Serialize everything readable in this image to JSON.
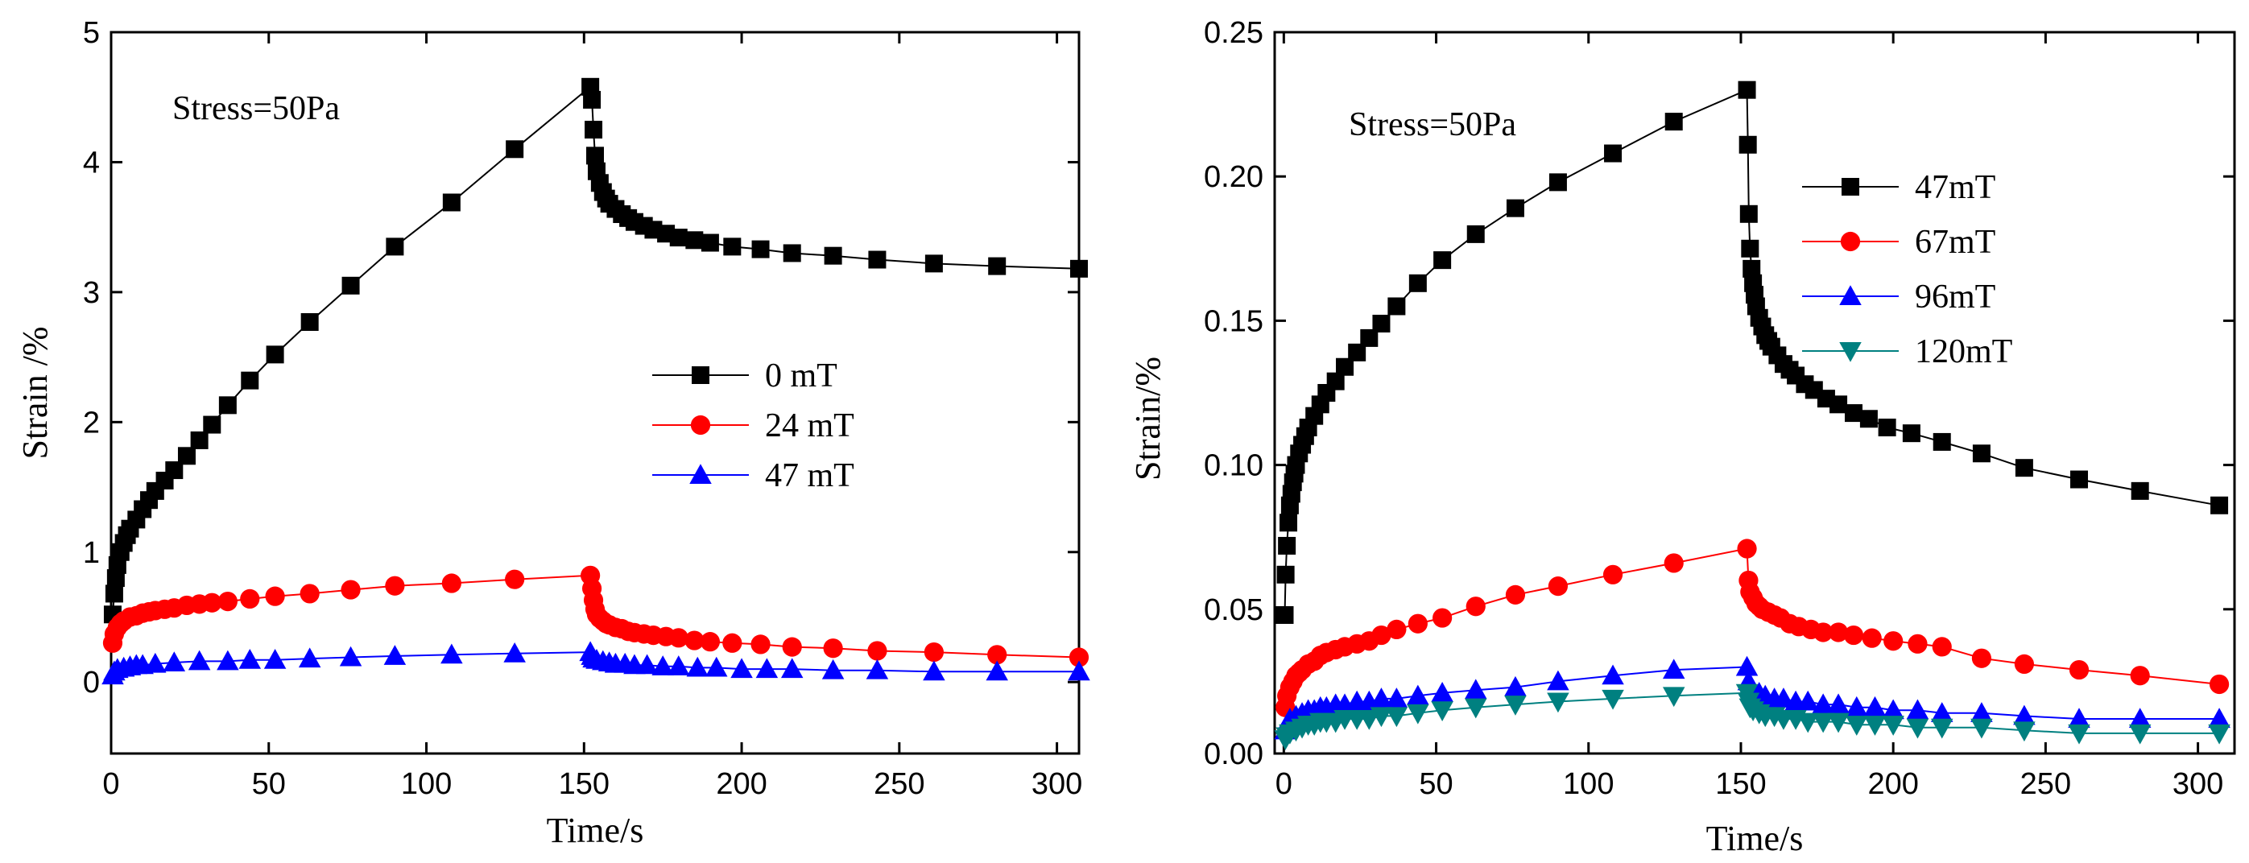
{
  "chart_data": [
    {
      "type": "line",
      "xlabel": "Time/s",
      "ylabel": "Strain /%",
      "annotation": "Stress=50Pa",
      "xlim": [
        0,
        307
      ],
      "ylim": [
        -0.55,
        5
      ],
      "xticks": [
        0,
        50,
        100,
        150,
        200,
        250,
        300
      ],
      "yticks": [
        0,
        1,
        2,
        3,
        4,
        5
      ],
      "xtick_labels": [
        "0",
        "50",
        "100",
        "150",
        "200",
        "250",
        "300"
      ],
      "ytick_labels": [
        "0",
        "1",
        "2",
        "3",
        "4",
        "5"
      ],
      "legend_position": "center-right",
      "series": [
        {
          "name": "0 mT",
          "color": "#000000",
          "marker": "square",
          "x": [
            0.5,
            1,
            1.5,
            2,
            3,
            4,
            5,
            6,
            8,
            10,
            12,
            14,
            17,
            20,
            24,
            28,
            32,
            37,
            44,
            52,
            63,
            76,
            90,
            108,
            128,
            152,
            152.5,
            153,
            153.5,
            154,
            155,
            156,
            157,
            158,
            160,
            162,
            164,
            166,
            169,
            172,
            176,
            180,
            185,
            190,
            197,
            206,
            216,
            229,
            243,
            261,
            281,
            307
          ],
          "y": [
            0.52,
            0.68,
            0.8,
            0.9,
            1.0,
            1.07,
            1.13,
            1.18,
            1.25,
            1.33,
            1.4,
            1.47,
            1.55,
            1.63,
            1.74,
            1.86,
            1.98,
            2.13,
            2.32,
            2.52,
            2.77,
            3.05,
            3.35,
            3.69,
            4.1,
            4.58,
            4.48,
            4.25,
            4.05,
            3.93,
            3.84,
            3.77,
            3.72,
            3.68,
            3.64,
            3.6,
            3.57,
            3.54,
            3.51,
            3.48,
            3.45,
            3.42,
            3.4,
            3.38,
            3.35,
            3.33,
            3.3,
            3.28,
            3.25,
            3.22,
            3.2,
            3.18
          ]
        },
        {
          "name": "24 mT",
          "color": "#ff0000",
          "marker": "circle",
          "x": [
            0.5,
            1,
            2,
            3,
            4,
            6,
            8,
            10,
            12,
            14,
            17,
            20,
            24,
            28,
            32,
            37,
            44,
            52,
            63,
            76,
            90,
            108,
            128,
            152,
            152.5,
            153,
            153.5,
            154,
            155,
            156,
            157,
            158,
            160,
            162,
            164,
            166,
            169,
            172,
            176,
            180,
            185,
            190,
            197,
            206,
            216,
            229,
            243,
            261,
            281,
            307
          ],
          "y": [
            0.3,
            0.37,
            0.42,
            0.45,
            0.47,
            0.5,
            0.51,
            0.53,
            0.54,
            0.55,
            0.56,
            0.57,
            0.59,
            0.6,
            0.61,
            0.62,
            0.64,
            0.66,
            0.68,
            0.71,
            0.74,
            0.76,
            0.79,
            0.82,
            0.72,
            0.63,
            0.56,
            0.52,
            0.49,
            0.47,
            0.45,
            0.44,
            0.42,
            0.41,
            0.39,
            0.38,
            0.37,
            0.36,
            0.35,
            0.34,
            0.32,
            0.31,
            0.3,
            0.29,
            0.27,
            0.26,
            0.24,
            0.23,
            0.21,
            0.19
          ]
        },
        {
          "name": "47 mT",
          "color": "#0000ff",
          "marker": "triangle-up",
          "x": [
            0.5,
            1,
            2,
            4,
            6,
            8,
            10,
            14,
            20,
            28,
            37,
            44,
            52,
            63,
            76,
            90,
            108,
            128,
            152,
            152.5,
            153,
            154,
            156,
            158,
            160,
            163,
            166,
            170,
            175,
            180,
            186,
            192,
            200,
            208,
            216,
            229,
            243,
            261,
            281,
            307
          ],
          "y": [
            0.05,
            0.08,
            0.1,
            0.11,
            0.12,
            0.13,
            0.13,
            0.14,
            0.15,
            0.16,
            0.16,
            0.17,
            0.17,
            0.18,
            0.19,
            0.2,
            0.21,
            0.22,
            0.23,
            0.2,
            0.18,
            0.17,
            0.16,
            0.15,
            0.14,
            0.14,
            0.13,
            0.13,
            0.12,
            0.12,
            0.11,
            0.11,
            0.1,
            0.1,
            0.1,
            0.09,
            0.09,
            0.08,
            0.08,
            0.08
          ]
        }
      ]
    },
    {
      "type": "line",
      "xlabel": "Time/s",
      "ylabel": "Strain/%",
      "annotation": "Stress=50Pa",
      "xlim": [
        -3,
        312
      ],
      "ylim": [
        0,
        0.25
      ],
      "xticks": [
        0,
        50,
        100,
        150,
        200,
        250,
        300
      ],
      "yticks": [
        0,
        0.05,
        0.1,
        0.15,
        0.2,
        0.25
      ],
      "xtick_labels": [
        "0",
        "50",
        "100",
        "150",
        "200",
        "250",
        "300"
      ],
      "ytick_labels": [
        "0.00",
        "0.05",
        "0.10",
        "0.15",
        "0.20",
        "0.25"
      ],
      "legend_position": "top-right",
      "series": [
        {
          "name": "47mT",
          "color": "#000000",
          "marker": "square",
          "x": [
            0.3,
            0.6,
            1,
            1.5,
            2,
            2.5,
            3,
            3.5,
            4,
            5,
            6,
            7,
            8,
            10,
            12,
            14,
            17,
            20,
            24,
            28,
            32,
            37,
            44,
            52,
            63,
            76,
            90,
            108,
            128,
            152,
            152.3,
            152.6,
            153,
            153.5,
            154,
            154.5,
            155,
            156,
            157,
            158,
            159,
            160,
            162,
            164,
            166,
            168,
            171,
            174,
            178,
            182,
            187,
            192,
            198,
            206,
            216,
            229,
            243,
            261,
            281,
            307
          ],
          "y": [
            0.048,
            0.062,
            0.072,
            0.08,
            0.086,
            0.09,
            0.094,
            0.097,
            0.1,
            0.104,
            0.107,
            0.11,
            0.113,
            0.117,
            0.121,
            0.125,
            0.129,
            0.134,
            0.139,
            0.144,
            0.149,
            0.155,
            0.163,
            0.171,
            0.18,
            0.189,
            0.198,
            0.208,
            0.219,
            0.23,
            0.211,
            0.187,
            0.175,
            0.168,
            0.163,
            0.159,
            0.155,
            0.151,
            0.148,
            0.145,
            0.143,
            0.141,
            0.138,
            0.135,
            0.133,
            0.131,
            0.128,
            0.126,
            0.123,
            0.121,
            0.118,
            0.116,
            0.113,
            0.111,
            0.108,
            0.104,
            0.099,
            0.095,
            0.091,
            0.086
          ]
        },
        {
          "name": "67mT",
          "color": "#ff0000",
          "marker": "circle",
          "x": [
            0.5,
            1,
            2,
            3,
            4,
            5,
            6,
            8,
            10,
            12,
            14,
            17,
            20,
            24,
            28,
            32,
            37,
            44,
            52,
            63,
            76,
            90,
            108,
            128,
            152,
            152.5,
            153,
            154,
            155,
            156,
            157,
            159,
            161,
            163,
            166,
            169,
            173,
            177,
            182,
            187,
            193,
            200,
            208,
            216,
            229,
            243,
            261,
            281,
            307
          ],
          "y": [
            0.016,
            0.02,
            0.023,
            0.025,
            0.027,
            0.028,
            0.029,
            0.031,
            0.032,
            0.034,
            0.035,
            0.036,
            0.037,
            0.038,
            0.039,
            0.041,
            0.043,
            0.045,
            0.047,
            0.051,
            0.055,
            0.058,
            0.062,
            0.066,
            0.071,
            0.06,
            0.056,
            0.054,
            0.052,
            0.051,
            0.05,
            0.049,
            0.048,
            0.047,
            0.045,
            0.044,
            0.043,
            0.042,
            0.042,
            0.041,
            0.04,
            0.039,
            0.038,
            0.037,
            0.033,
            0.031,
            0.029,
            0.027,
            0.024
          ]
        },
        {
          "name": "96mT",
          "color": "#0000ff",
          "marker": "triangle-up",
          "x": [
            0.5,
            1,
            2,
            4,
            6,
            8,
            10,
            12,
            14,
            17,
            20,
            24,
            28,
            32,
            37,
            44,
            52,
            63,
            76,
            90,
            108,
            128,
            152,
            152.5,
            153,
            154,
            156,
            158,
            161,
            164,
            168,
            172,
            177,
            182,
            188,
            194,
            200,
            208,
            216,
            229,
            243,
            261,
            281,
            307
          ],
          "y": [
            0.008,
            0.01,
            0.012,
            0.013,
            0.014,
            0.015,
            0.015,
            0.016,
            0.016,
            0.017,
            0.017,
            0.018,
            0.018,
            0.019,
            0.019,
            0.02,
            0.021,
            0.022,
            0.023,
            0.025,
            0.027,
            0.029,
            0.03,
            0.025,
            0.023,
            0.022,
            0.021,
            0.02,
            0.019,
            0.019,
            0.018,
            0.018,
            0.017,
            0.017,
            0.016,
            0.016,
            0.015,
            0.015,
            0.014,
            0.014,
            0.013,
            0.012,
            0.012,
            0.012
          ]
        },
        {
          "name": "120mT",
          "color": "#008080",
          "marker": "triangle-down",
          "x": [
            0.5,
            1,
            2,
            4,
            6,
            8,
            10,
            12,
            14,
            17,
            20,
            24,
            28,
            32,
            37,
            44,
            52,
            63,
            76,
            90,
            108,
            128,
            152,
            152.5,
            153,
            154,
            156,
            158,
            161,
            164,
            168,
            172,
            177,
            182,
            188,
            194,
            200,
            208,
            216,
            229,
            243,
            261,
            281,
            307
          ],
          "y": [
            0.005,
            0.006,
            0.007,
            0.008,
            0.009,
            0.01,
            0.01,
            0.011,
            0.011,
            0.011,
            0.012,
            0.012,
            0.012,
            0.013,
            0.013,
            0.014,
            0.015,
            0.016,
            0.017,
            0.018,
            0.019,
            0.02,
            0.021,
            0.018,
            0.016,
            0.015,
            0.014,
            0.013,
            0.013,
            0.012,
            0.012,
            0.011,
            0.011,
            0.011,
            0.01,
            0.01,
            0.01,
            0.009,
            0.009,
            0.009,
            0.008,
            0.007,
            0.007,
            0.007
          ]
        }
      ]
    }
  ]
}
